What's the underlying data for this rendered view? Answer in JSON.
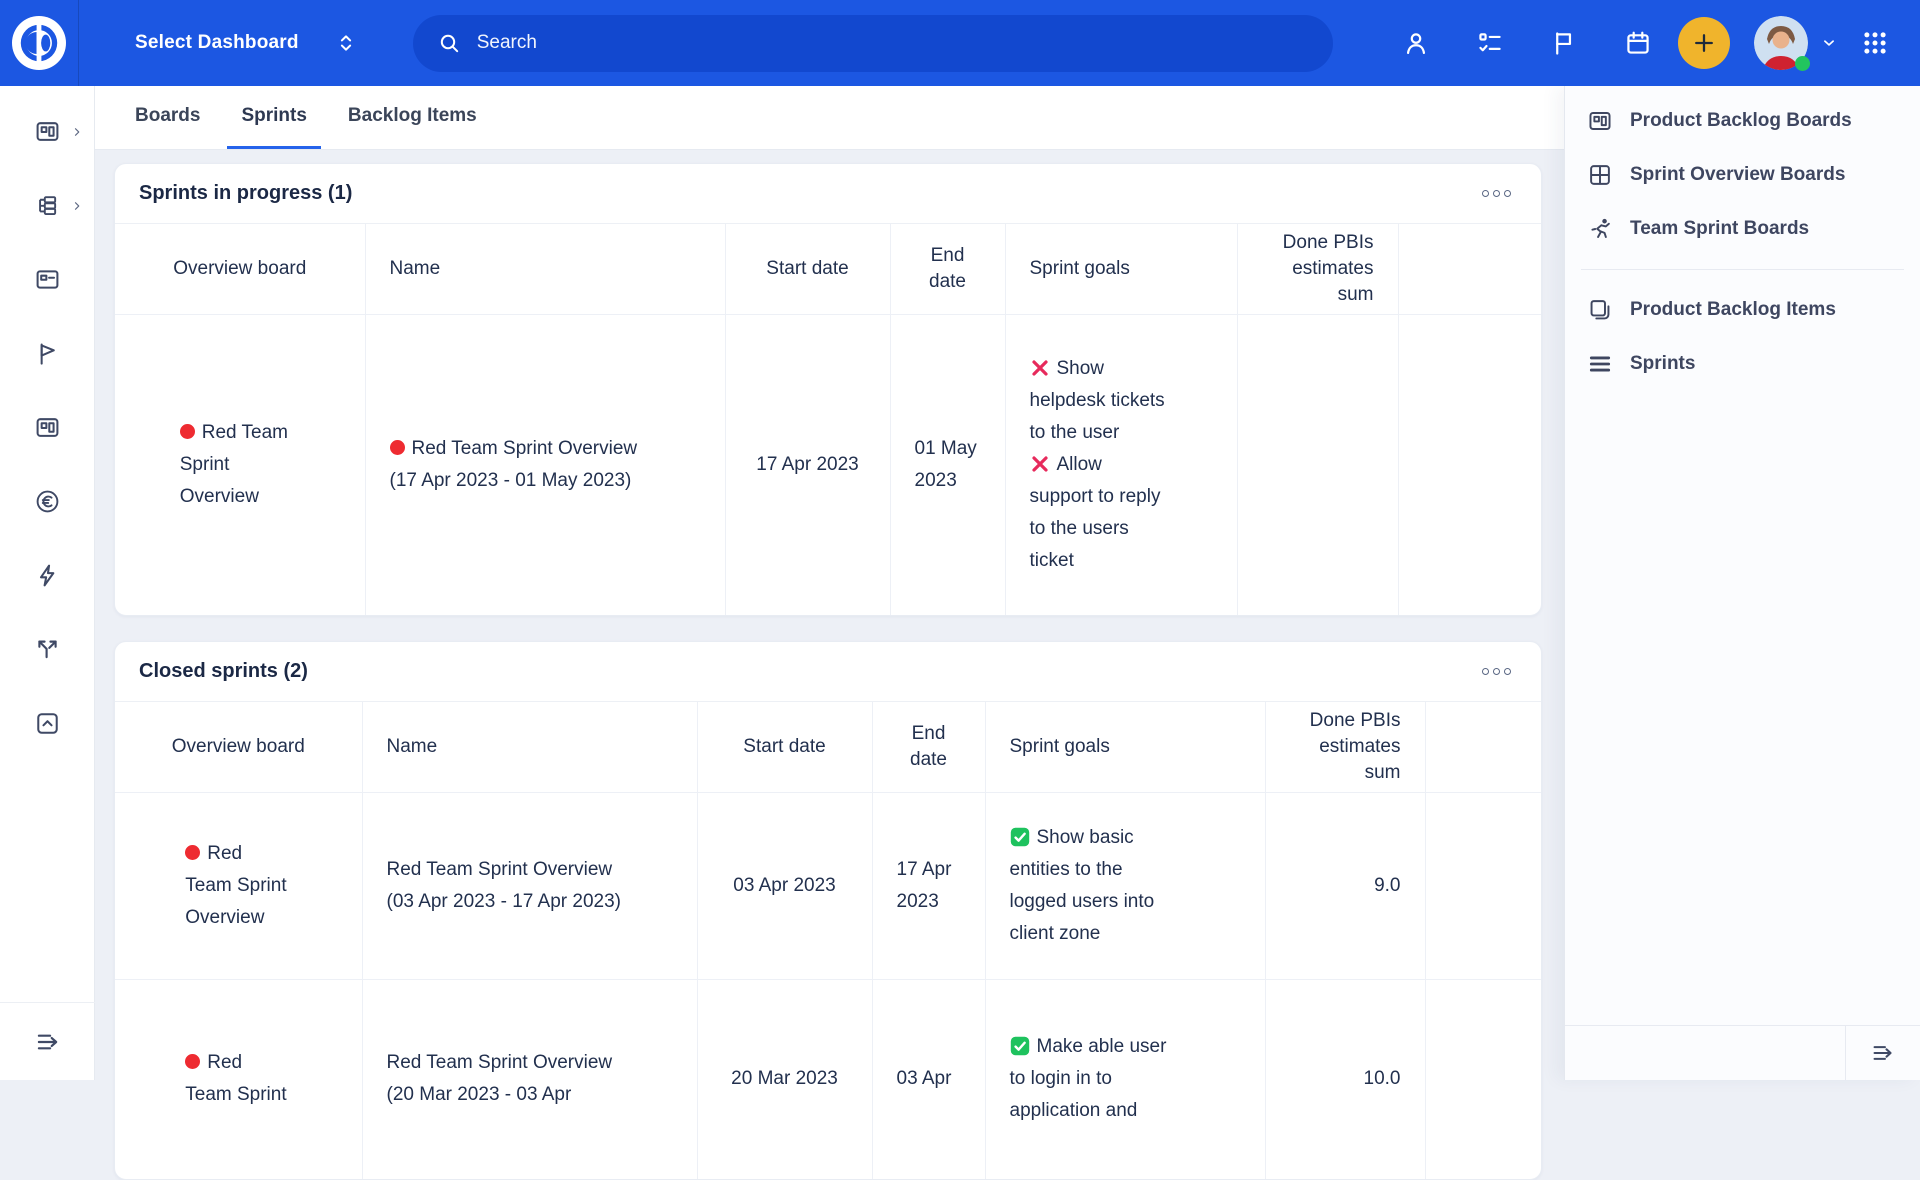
{
  "topbar": {
    "dashboard_selector": "Select Dashboard",
    "search_placeholder": "Search",
    "icons": [
      "user-icon",
      "tasks-icon",
      "flag-icon",
      "calendar-icon",
      "plus-button",
      "avatar",
      "chevron-down-icon",
      "apps-grid-icon"
    ]
  },
  "tabs": [
    {
      "label": "Boards",
      "active": false
    },
    {
      "label": "Sprints",
      "active": true
    },
    {
      "label": "Backlog Items",
      "active": false
    }
  ],
  "sidebar": {
    "items": [
      {
        "icon": "board",
        "chevron": true
      },
      {
        "icon": "tree",
        "chevron": true
      },
      {
        "icon": "window",
        "chevron": false
      },
      {
        "icon": "pennant",
        "chevron": false
      },
      {
        "icon": "board",
        "chevron": false
      },
      {
        "icon": "euro",
        "chevron": false
      },
      {
        "icon": "bolt",
        "chevron": false
      },
      {
        "icon": "split",
        "chevron": false
      },
      {
        "icon": "box-up",
        "chevron": false
      }
    ],
    "collapse_icon": "collapse"
  },
  "right_panel": {
    "groups": [
      [
        {
          "icon": "board",
          "label": "Product Backlog Boards"
        },
        {
          "icon": "quad",
          "label": "Sprint Overview Boards"
        },
        {
          "icon": "runner",
          "label": "Team Sprint Boards"
        }
      ],
      [
        {
          "icon": "copy",
          "label": "Product Backlog Items"
        },
        {
          "icon": "rows",
          "label": "Sprints"
        }
      ]
    ]
  },
  "table_columns": [
    "Overview board",
    "Name",
    "Start date",
    "End date",
    "Sprint goals",
    "Done PBIs estimates sum"
  ],
  "sections": [
    {
      "title": "Sprints in progress (1)",
      "rows": [
        {
          "board": "Red Team Sprint Overview",
          "board_dot": true,
          "name": "Red Team Sprint Overview (17 Apr 2023 - 01 May 2023)",
          "name_dot": true,
          "start": "17 Apr 2023",
          "end": "01 May 2023",
          "goals": [
            {
              "done": false,
              "text": "Show helpdesk tickets to the user"
            },
            {
              "done": false,
              "text": "Allow support to reply to the users ticket"
            }
          ],
          "done_sum": ""
        }
      ]
    },
    {
      "title": "Closed sprints (2)",
      "rows": [
        {
          "board": "Red Team Sprint Overview",
          "board_dot": true,
          "name": "Red Team Sprint Overview (03 Apr 2023 - 17 Apr 2023)",
          "name_dot": false,
          "start": "03 Apr 2023",
          "end": "17 Apr 2023",
          "goals": [
            {
              "done": true,
              "text": "Show basic entities to the logged users into client zone"
            }
          ],
          "done_sum": "9.0"
        },
        {
          "board": "Red Team Sprint",
          "board_dot": true,
          "name": "Red Team Sprint Overview (20 Mar 2023 - 03 Apr",
          "name_dot": false,
          "start": "20 Mar 2023",
          "end": "03 Apr",
          "goals": [
            {
              "done": true,
              "text": "Make able user to login in to application and"
            }
          ],
          "done_sum": "10.0"
        }
      ]
    }
  ],
  "colors": {
    "topbar_blue": "#1c57e2",
    "search_pill_blue": "#1248cf",
    "accent_blue": "#2563eb",
    "plus_yellow": "#f0b42c",
    "status_red": "#ee2b31",
    "goal_fail_red": "#e72a5c",
    "goal_done_green": "#1ec25e",
    "online_green": "#22c55e",
    "text_navy": "#22304e"
  }
}
